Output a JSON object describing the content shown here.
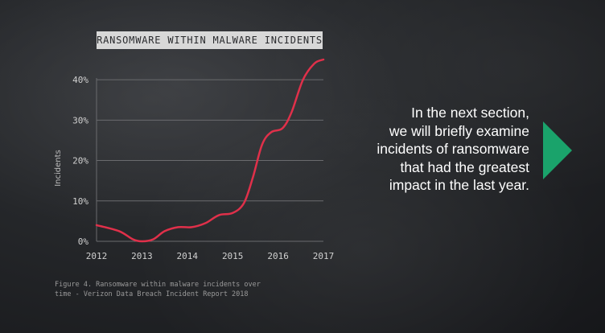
{
  "chart_data": {
    "type": "line",
    "title": "RANSOMWARE WITHIN MALWARE INCIDENTS",
    "ylabel": "Incidents",
    "xlabel": "",
    "x_ticks": [
      "2012",
      "2013",
      "2014",
      "2015",
      "2016",
      "2017"
    ],
    "y_ticks": [
      "0%",
      "10%",
      "20%",
      "30%",
      "40%"
    ],
    "ylim": [
      0,
      45
    ],
    "xlim": [
      2012,
      2017
    ],
    "grid": true,
    "series": [
      {
        "color": "#e0304a",
        "points": [
          [
            2012.0,
            4
          ],
          [
            2012.5,
            2.5
          ],
          [
            2012.8,
            0.5
          ],
          [
            2013.0,
            0
          ],
          [
            2013.25,
            0.5
          ],
          [
            2013.5,
            2.5
          ],
          [
            2013.8,
            3.5
          ],
          [
            2014.1,
            3.5
          ],
          [
            2014.4,
            4.5
          ],
          [
            2014.7,
            6.5
          ],
          [
            2015.0,
            7
          ],
          [
            2015.25,
            9.5
          ],
          [
            2015.45,
            16
          ],
          [
            2015.65,
            24
          ],
          [
            2015.85,
            27
          ],
          [
            2016.1,
            28
          ],
          [
            2016.3,
            32
          ],
          [
            2016.55,
            40
          ],
          [
            2016.8,
            44
          ],
          [
            2017.0,
            45
          ]
        ]
      }
    ]
  },
  "caption": {
    "line1": "Figure 4. Ransomware within malware incidents over",
    "line2": "time - Verizon Data Breach Incident Report 2018"
  },
  "callout": {
    "line1": "In the next section,",
    "line2": "we will briefly examine",
    "line3": "incidents of ransomware",
    "line4": "that had the greatest",
    "line5": "impact in the last year."
  },
  "colors": {
    "accent_line": "#e0304a",
    "arrow": "#1aa36b",
    "grid": "#6a6b6e",
    "axis_text": "#d0d0d0"
  },
  "icons": {
    "next_arrow": "triangle-right-icon"
  }
}
